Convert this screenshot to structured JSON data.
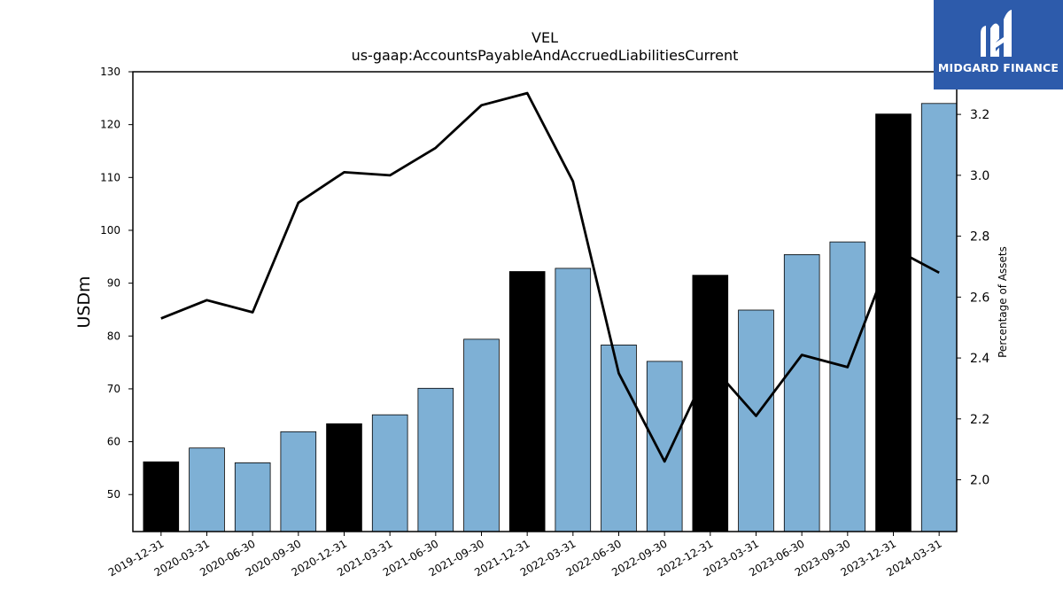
{
  "logo": {
    "text": "MIDGARD FINANCE"
  },
  "colors": {
    "highlight": "#000000",
    "bar": "#7eb0d5",
    "line": "#000000"
  },
  "chart_data": {
    "type": "bar",
    "title": "VEL",
    "subtitle": "us-gaap:AccountsPayableAndAccruedLiabilitiesCurrent",
    "ylabel": "USDm",
    "ylabel_right": "Percentage of Assets",
    "ylim": [
      43,
      130
    ],
    "ylim_right": [
      1.83,
      3.34
    ],
    "yticks": [
      50,
      60,
      70,
      80,
      90,
      100,
      110,
      120,
      130
    ],
    "yticks_right": [
      2.0,
      2.2,
      2.4,
      2.6,
      2.8,
      3.0,
      3.2
    ],
    "yticks_right_labels": [
      "2.0",
      "2.2",
      "2.4",
      "2.6",
      "2.8",
      "3.0",
      "3.2"
    ],
    "categories": [
      "2019-12-31",
      "2020-03-31",
      "2020-06-30",
      "2020-09-30",
      "2020-12-31",
      "2021-03-31",
      "2021-06-30",
      "2021-09-30",
      "2021-12-31",
      "2022-03-31",
      "2022-06-30",
      "2022-09-30",
      "2022-12-31",
      "2023-03-31",
      "2023-06-30",
      "2023-09-30",
      "2023-12-31",
      "2024-03-31"
    ],
    "series": [
      {
        "type": "bar",
        "values": [
          56.2,
          58.8,
          56.0,
          61.9,
          63.4,
          65.1,
          70.1,
          79.4,
          92.2,
          92.8,
          78.3,
          75.2,
          91.5,
          84.9,
          95.4,
          97.8,
          122.0,
          124.0
        ],
        "highlight": [
          true,
          false,
          false,
          false,
          true,
          false,
          false,
          false,
          true,
          false,
          false,
          false,
          true,
          false,
          false,
          false,
          true,
          false
        ]
      },
      {
        "type": "line",
        "axis": "right",
        "values": [
          2.53,
          2.59,
          2.55,
          2.91,
          3.01,
          3.0,
          3.09,
          3.23,
          3.27,
          2.98,
          2.35,
          2.06,
          2.38,
          2.21,
          2.41,
          2.37,
          2.76,
          2.68
        ]
      }
    ]
  }
}
